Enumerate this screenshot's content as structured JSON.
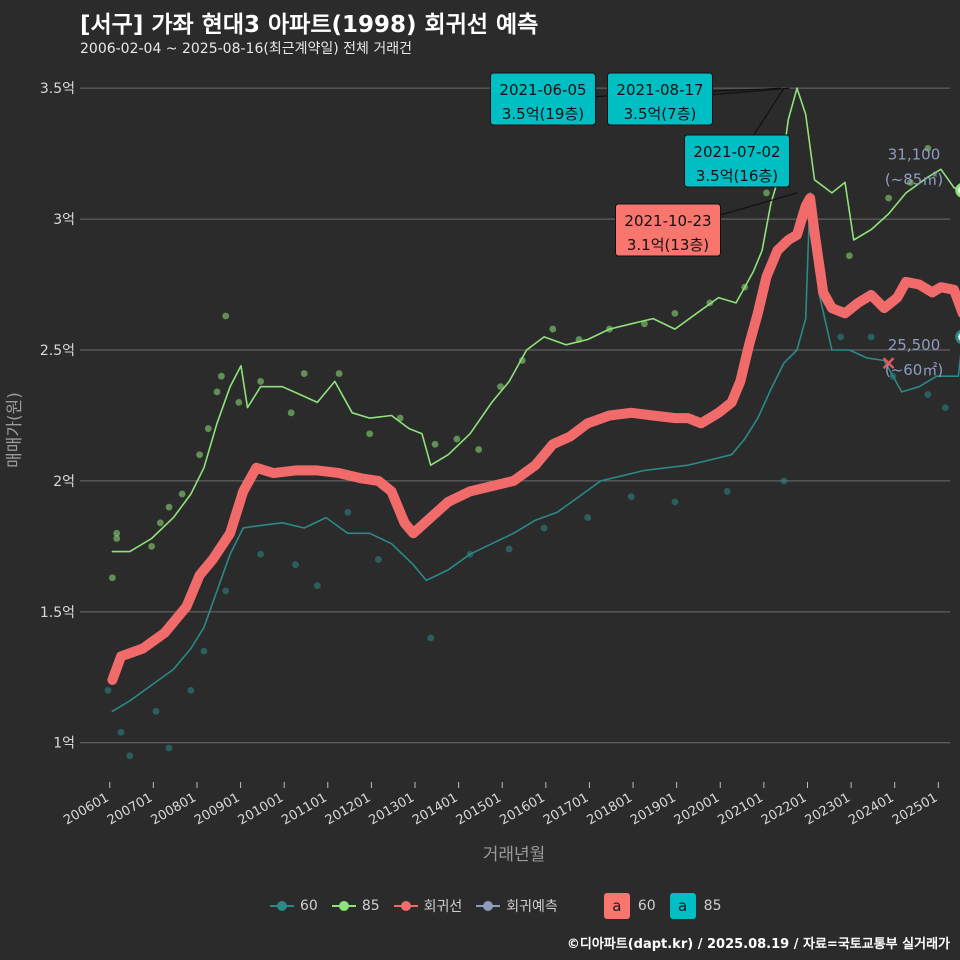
{
  "header": {
    "title": "[서구] 가좌 현대3 아파트(1998) 회귀선 예측",
    "subtitle": "2006-02-04 ~ 2025-08-16(최근계약일) 전체 거래건"
  },
  "footer": {
    "credit": "©디아파트(dapt.kr) / 2025.08.19 / 자료=국토교통부 실거래가"
  },
  "colors": {
    "background": "#2b2b2c",
    "grid": "#6e6e6e",
    "size60": "#2a8a86",
    "size85": "#8fe27a",
    "regression": "#f26b6b",
    "label85": "#00bfc4",
    "label60": "#f8766d",
    "endLabel": "#8e9cc0"
  },
  "legend": {
    "items": [
      {
        "key": "60",
        "label": "60",
        "color": "#2a8a86"
      },
      {
        "key": "85",
        "label": "85",
        "color": "#8fe27a"
      },
      {
        "key": "reg",
        "label": "회귀선",
        "color": "#f26b6b"
      },
      {
        "key": "pred",
        "label": "회귀예측",
        "color": "#8e9cc0"
      }
    ],
    "boxes": [
      {
        "letter": "a",
        "label": "60",
        "color": "#f8766d"
      },
      {
        "letter": "a",
        "label": "85",
        "color": "#00bfc4"
      }
    ]
  },
  "chart_data": {
    "type": "line",
    "title": "[서구] 가좌 현대3 아파트(1998) 회귀선 예측",
    "subtitle": "2006-02-04 ~ 2025-08-16(최근계약일) 전체 거래건",
    "xlabel": "거래년월",
    "ylabel": "매매가(원)",
    "ylim": [
      0.85,
      3.6
    ],
    "y_ticks": [
      1,
      1.5,
      2,
      2.5,
      3,
      3.5
    ],
    "y_tick_labels": [
      "1억",
      "1.5억",
      "2억",
      "2.5억",
      "3억",
      "3.5억"
    ],
    "x_ticks": [
      "200601",
      "200701",
      "200801",
      "200901",
      "201001",
      "201101",
      "201201",
      "201301",
      "201401",
      "201501",
      "201601",
      "201701",
      "201801",
      "201901",
      "202001",
      "202101",
      "202201",
      "202301",
      "202401",
      "202501"
    ],
    "grid": true,
    "legend_position": "bottom",
    "series": [
      {
        "name": "85",
        "style": "line",
        "points": [
          [
            2006.1,
            1.73
          ],
          [
            2006.5,
            1.73
          ],
          [
            2007.0,
            1.78
          ],
          [
            2007.5,
            1.86
          ],
          [
            2007.9,
            1.95
          ],
          [
            2008.2,
            2.05
          ],
          [
            2008.5,
            2.22
          ],
          [
            2008.8,
            2.36
          ],
          [
            2009.05,
            2.44
          ],
          [
            2009.2,
            2.28
          ],
          [
            2009.5,
            2.36
          ],
          [
            2010.0,
            2.36
          ],
          [
            2010.4,
            2.33
          ],
          [
            2010.8,
            2.3
          ],
          [
            2011.2,
            2.38
          ],
          [
            2011.6,
            2.26
          ],
          [
            2012.0,
            2.24
          ],
          [
            2012.5,
            2.25
          ],
          [
            2012.9,
            2.2
          ],
          [
            2013.2,
            2.18
          ],
          [
            2013.4,
            2.06
          ],
          [
            2013.8,
            2.1
          ],
          [
            2014.3,
            2.18
          ],
          [
            2014.8,
            2.3
          ],
          [
            2015.2,
            2.38
          ],
          [
            2015.6,
            2.5
          ],
          [
            2016.0,
            2.55
          ],
          [
            2016.5,
            2.52
          ],
          [
            2017.0,
            2.54
          ],
          [
            2017.5,
            2.58
          ],
          [
            2018.0,
            2.6
          ],
          [
            2018.5,
            2.62
          ],
          [
            2019.0,
            2.58
          ],
          [
            2019.5,
            2.64
          ],
          [
            2020.0,
            2.7
          ],
          [
            2020.4,
            2.68
          ],
          [
            2020.8,
            2.8
          ],
          [
            2021.0,
            2.88
          ],
          [
            2021.2,
            3.06
          ],
          [
            2021.45,
            3.2
          ],
          [
            2021.6,
            3.38
          ],
          [
            2021.8,
            3.5
          ],
          [
            2022.0,
            3.4
          ],
          [
            2022.2,
            3.15
          ],
          [
            2022.6,
            3.1
          ],
          [
            2022.9,
            3.14
          ],
          [
            2023.1,
            2.92
          ],
          [
            2023.5,
            2.96
          ],
          [
            2023.9,
            3.02
          ],
          [
            2024.3,
            3.1
          ],
          [
            2024.8,
            3.16
          ],
          [
            2025.1,
            3.19
          ],
          [
            2025.4,
            3.12
          ],
          [
            2025.6,
            3.11
          ]
        ]
      },
      {
        "name": "60",
        "style": "line",
        "points": [
          [
            2006.1,
            1.12
          ],
          [
            2006.5,
            1.16
          ],
          [
            2007.0,
            1.22
          ],
          [
            2007.5,
            1.28
          ],
          [
            2007.9,
            1.36
          ],
          [
            2008.2,
            1.44
          ],
          [
            2008.5,
            1.58
          ],
          [
            2008.8,
            1.72
          ],
          [
            2009.1,
            1.82
          ],
          [
            2009.5,
            1.83
          ],
          [
            2010.0,
            1.84
          ],
          [
            2010.5,
            1.82
          ],
          [
            2011.0,
            1.86
          ],
          [
            2011.5,
            1.8
          ],
          [
            2012.0,
            1.8
          ],
          [
            2012.5,
            1.76
          ],
          [
            2013.0,
            1.68
          ],
          [
            2013.3,
            1.62
          ],
          [
            2013.8,
            1.66
          ],
          [
            2014.3,
            1.72
          ],
          [
            2014.8,
            1.76
          ],
          [
            2015.3,
            1.8
          ],
          [
            2015.8,
            1.85
          ],
          [
            2016.3,
            1.88
          ],
          [
            2016.8,
            1.94
          ],
          [
            2017.3,
            2.0
          ],
          [
            2017.8,
            2.02
          ],
          [
            2018.3,
            2.04
          ],
          [
            2018.8,
            2.05
          ],
          [
            2019.3,
            2.06
          ],
          [
            2019.8,
            2.08
          ],
          [
            2020.3,
            2.1
          ],
          [
            2020.6,
            2.16
          ],
          [
            2020.9,
            2.24
          ],
          [
            2021.2,
            2.35
          ],
          [
            2021.5,
            2.45
          ],
          [
            2021.8,
            2.5
          ],
          [
            2022.0,
            2.62
          ],
          [
            2022.1,
            3.1
          ],
          [
            2022.3,
            2.72
          ],
          [
            2022.6,
            2.5
          ],
          [
            2023.0,
            2.5
          ],
          [
            2023.4,
            2.47
          ],
          [
            2023.8,
            2.46
          ],
          [
            2024.2,
            2.34
          ],
          [
            2024.6,
            2.36
          ],
          [
            2025.0,
            2.4
          ],
          [
            2025.5,
            2.4
          ],
          [
            2025.6,
            2.55
          ]
        ]
      },
      {
        "name": "회귀선",
        "style": "thick-line",
        "points": [
          [
            2006.1,
            1.24
          ],
          [
            2006.3,
            1.33
          ],
          [
            2006.8,
            1.36
          ],
          [
            2007.3,
            1.42
          ],
          [
            2007.8,
            1.52
          ],
          [
            2008.1,
            1.64
          ],
          [
            2008.4,
            1.7
          ],
          [
            2008.8,
            1.8
          ],
          [
            2009.1,
            1.96
          ],
          [
            2009.4,
            2.05
          ],
          [
            2009.8,
            2.03
          ],
          [
            2010.3,
            2.04
          ],
          [
            2010.8,
            2.04
          ],
          [
            2011.3,
            2.03
          ],
          [
            2011.8,
            2.01
          ],
          [
            2012.2,
            2.0
          ],
          [
            2012.5,
            1.96
          ],
          [
            2012.8,
            1.84
          ],
          [
            2013.0,
            1.8
          ],
          [
            2013.4,
            1.86
          ],
          [
            2013.8,
            1.92
          ],
          [
            2014.3,
            1.96
          ],
          [
            2014.8,
            1.98
          ],
          [
            2015.3,
            2.0
          ],
          [
            2015.8,
            2.06
          ],
          [
            2016.2,
            2.14
          ],
          [
            2016.6,
            2.17
          ],
          [
            2017.0,
            2.22
          ],
          [
            2017.5,
            2.25
          ],
          [
            2018.0,
            2.26
          ],
          [
            2018.5,
            2.25
          ],
          [
            2019.0,
            2.24
          ],
          [
            2019.3,
            2.24
          ],
          [
            2019.6,
            2.22
          ],
          [
            2020.0,
            2.26
          ],
          [
            2020.3,
            2.3
          ],
          [
            2020.5,
            2.38
          ],
          [
            2020.7,
            2.52
          ],
          [
            2020.9,
            2.64
          ],
          [
            2021.1,
            2.78
          ],
          [
            2021.35,
            2.88
          ],
          [
            2021.6,
            2.92
          ],
          [
            2021.8,
            2.94
          ],
          [
            2022.0,
            3.05
          ],
          [
            2022.1,
            3.08
          ],
          [
            2022.2,
            2.95
          ],
          [
            2022.4,
            2.72
          ],
          [
            2022.6,
            2.66
          ],
          [
            2022.9,
            2.64
          ],
          [
            2023.2,
            2.68
          ],
          [
            2023.5,
            2.71
          ],
          [
            2023.8,
            2.66
          ],
          [
            2024.1,
            2.7
          ],
          [
            2024.3,
            2.76
          ],
          [
            2024.6,
            2.75
          ],
          [
            2024.9,
            2.72
          ],
          [
            2025.1,
            2.74
          ],
          [
            2025.4,
            2.73
          ],
          [
            2025.6,
            2.64
          ]
        ]
      }
    ],
    "scatter": [
      {
        "name": "85",
        "points": [
          [
            2006.1,
            1.63
          ],
          [
            2006.2,
            1.8
          ],
          [
            2006.2,
            1.78
          ],
          [
            2007.0,
            1.75
          ],
          [
            2007.2,
            1.84
          ],
          [
            2007.4,
            1.9
          ],
          [
            2007.7,
            1.95
          ],
          [
            2008.1,
            2.1
          ],
          [
            2008.3,
            2.2
          ],
          [
            2008.5,
            2.34
          ],
          [
            2008.6,
            2.4
          ],
          [
            2008.7,
            2.63
          ],
          [
            2009.0,
            2.3
          ],
          [
            2009.5,
            2.38
          ],
          [
            2010.2,
            2.26
          ],
          [
            2010.5,
            2.41
          ],
          [
            2011.3,
            2.41
          ],
          [
            2012.0,
            2.18
          ],
          [
            2012.7,
            2.24
          ],
          [
            2013.5,
            2.14
          ],
          [
            2014.0,
            2.16
          ],
          [
            2014.5,
            2.12
          ],
          [
            2015.0,
            2.36
          ],
          [
            2015.5,
            2.46
          ],
          [
            2016.2,
            2.58
          ],
          [
            2016.8,
            2.54
          ],
          [
            2017.5,
            2.58
          ],
          [
            2018.3,
            2.6
          ],
          [
            2019.0,
            2.64
          ],
          [
            2019.8,
            2.68
          ],
          [
            2020.6,
            2.74
          ],
          [
            2021.1,
            3.1
          ],
          [
            2023.0,
            2.86
          ],
          [
            2023.9,
            3.08
          ],
          [
            2024.4,
            3.14
          ],
          [
            2024.8,
            3.27
          ]
        ]
      },
      {
        "name": "60",
        "points": [
          [
            2006.0,
            1.2
          ],
          [
            2006.3,
            1.04
          ],
          [
            2006.5,
            0.95
          ],
          [
            2007.1,
            1.12
          ],
          [
            2007.4,
            0.98
          ],
          [
            2007.9,
            1.2
          ],
          [
            2008.2,
            1.35
          ],
          [
            2008.7,
            1.58
          ],
          [
            2009.5,
            1.72
          ],
          [
            2010.3,
            1.68
          ],
          [
            2010.8,
            1.6
          ],
          [
            2011.5,
            1.88
          ],
          [
            2012.2,
            1.7
          ],
          [
            2013.0,
            1.8
          ],
          [
            2013.4,
            1.4
          ],
          [
            2014.3,
            1.72
          ],
          [
            2015.2,
            1.74
          ],
          [
            2016.0,
            1.82
          ],
          [
            2017.0,
            1.86
          ],
          [
            2018.0,
            1.94
          ],
          [
            2019.0,
            1.92
          ],
          [
            2020.2,
            1.96
          ],
          [
            2021.5,
            2.0
          ],
          [
            2022.8,
            2.55
          ],
          [
            2023.5,
            2.55
          ],
          [
            2024.0,
            2.4
          ],
          [
            2024.8,
            2.33
          ],
          [
            2025.2,
            2.28
          ]
        ]
      }
    ],
    "prediction_marker": {
      "x": 2023.9,
      "y": 2.45
    },
    "annotations": [
      {
        "date": "2021-06-05",
        "price": "3.5억(19층)",
        "x": 2021.43,
        "y": 3.5,
        "kind": "85"
      },
      {
        "date": "2021-08-17",
        "price": "3.5억(7층)",
        "x": 2021.63,
        "y": 3.5,
        "kind": "85"
      },
      {
        "date": "2021-07-02",
        "price": "3.5억(16층)",
        "x": 2021.5,
        "y": 3.5,
        "kind": "85"
      },
      {
        "date": "2021-10-23",
        "price": "3.1억(13층)",
        "x": 2021.8,
        "y": 3.1,
        "kind": "60"
      }
    ],
    "end_labels": [
      {
        "value": "31,100",
        "area": "(~85㎡)",
        "x": 2025.6,
        "y": 3.11,
        "color": "#8fe27a"
      },
      {
        "value": "25,500",
        "area": "(~60㎡)",
        "x": 2025.6,
        "y": 2.55,
        "color": "#2a8a86"
      }
    ]
  }
}
